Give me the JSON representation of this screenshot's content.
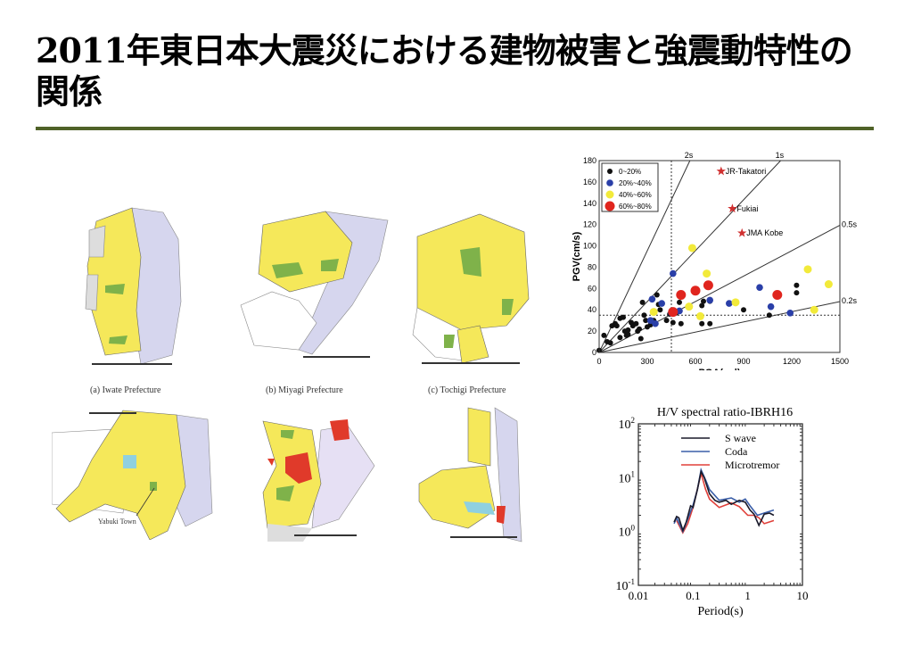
{
  "slide": {
    "title": "2011年東日本大震災における建物被害と強震動特性の関係"
  },
  "maps": {
    "captions": [
      "(a) Iwate Prefecture",
      "(b) Miyagi Prefecture",
      "(c) Tochigi Prefecture"
    ],
    "annotation": "Yabuki Town"
  },
  "colors": {
    "rule": "#4f6228",
    "yellow": "#f5e85a",
    "lavender": "#d6d6ee",
    "green": "#7fb24a",
    "red": "#e03a2a",
    "cyan": "#8fd0e0"
  },
  "chart_data": [
    {
      "type": "scatter",
      "xlabel": "PGA(gal)",
      "ylabel": "PGV(cm/s)",
      "xlim": [
        0,
        1500
      ],
      "ylim": [
        0,
        180
      ],
      "xticks": [
        0,
        300,
        600,
        900,
        1200,
        1500
      ],
      "yticks": [
        0,
        20,
        40,
        60,
        80,
        100,
        120,
        140,
        160,
        180
      ],
      "legend_position": "top-left",
      "period_lines": [
        {
          "label": "2s",
          "T": 2
        },
        {
          "label": "1s",
          "T": 1
        },
        {
          "label": "0.5s",
          "T": 0.5
        },
        {
          "label": "0.2s",
          "T": 0.2
        }
      ],
      "threshold_lines": {
        "pga": 450,
        "pgv": 35
      },
      "series": [
        {
          "name": "0~20%",
          "color": "#111111",
          "points": [
            [
              0,
              2
            ],
            [
              30,
              16
            ],
            [
              50,
              10
            ],
            [
              70,
              9
            ],
            [
              80,
              25
            ],
            [
              100,
              27
            ],
            [
              110,
              25
            ],
            [
              130,
              32
            ],
            [
              130,
              14
            ],
            [
              150,
              33
            ],
            [
              160,
              20
            ],
            [
              170,
              16
            ],
            [
              180,
              17
            ],
            [
              180,
              21
            ],
            [
              200,
              28
            ],
            [
              210,
              25
            ],
            [
              230,
              27
            ],
            [
              240,
              20
            ],
            [
              250,
              22
            ],
            [
              260,
              13
            ],
            [
              270,
              47
            ],
            [
              280,
              35
            ],
            [
              290,
              30
            ],
            [
              300,
              24
            ],
            [
              320,
              26
            ],
            [
              340,
              30
            ],
            [
              360,
              54
            ],
            [
              370,
              45
            ],
            [
              380,
              40
            ],
            [
              420,
              30
            ],
            [
              440,
              36
            ],
            [
              460,
              28
            ],
            [
              480,
              37
            ],
            [
              500,
              47
            ],
            [
              510,
              27
            ],
            [
              560,
              44
            ],
            [
              640,
              44
            ],
            [
              650,
              48
            ],
            [
              640,
              27
            ],
            [
              690,
              27
            ],
            [
              690,
              48
            ],
            [
              900,
              40
            ],
            [
              1060,
              35
            ],
            [
              1230,
              63
            ],
            [
              1230,
              56
            ]
          ]
        },
        {
          "name": "20%~40%",
          "color": "#2a3fa8",
          "points": [
            [
              320,
              30
            ],
            [
              330,
              50
            ],
            [
              350,
              27
            ],
            [
              390,
              46
            ],
            [
              450,
              37
            ],
            [
              460,
              74
            ],
            [
              470,
              38
            ],
            [
              500,
              39
            ],
            [
              690,
              49
            ],
            [
              810,
              46
            ],
            [
              1000,
              61
            ],
            [
              1070,
              43
            ],
            [
              1190,
              37
            ]
          ]
        },
        {
          "name": "40%~60%",
          "color": "#f2ea3a",
          "points": [
            [
              340,
              38
            ],
            [
              560,
              43
            ],
            [
              580,
              98
            ],
            [
              630,
              34
            ],
            [
              670,
              74
            ],
            [
              850,
              47
            ],
            [
              1300,
              78
            ],
            [
              1340,
              40
            ],
            [
              1430,
              64
            ]
          ]
        },
        {
          "name": "60%~80%",
          "color": "#e0251e",
          "points": [
            [
              460,
              38
            ],
            [
              510,
              54
            ],
            [
              600,
              58
            ],
            [
              680,
              63
            ],
            [
              1110,
              54
            ]
          ]
        }
      ],
      "annotations": [
        {
          "label": "JR-Takatori",
          "x": 760,
          "y": 170
        },
        {
          "label": "Fukiai",
          "x": 830,
          "y": 135
        },
        {
          "label": "JMA Kobe",
          "x": 890,
          "y": 112
        }
      ]
    },
    {
      "type": "line",
      "title": "H/V spectral ratio-IBRH16",
      "xlabel": "Period(s)",
      "xscale": "log",
      "yscale": "log",
      "xlim": [
        0.01,
        10
      ],
      "ylim": [
        0.1,
        100
      ],
      "xticks": [
        "0.01",
        "0.1",
        "1",
        "10"
      ],
      "yticks": [
        {
          "base": "10",
          "exp": "-1"
        },
        {
          "base": "10",
          "exp": "0"
        },
        {
          "base": "10",
          "exp": "1"
        },
        {
          "base": "10",
          "exp": "2"
        }
      ],
      "legend_position": "top-right",
      "series": [
        {
          "name": "S wave",
          "color": "#1a1a2a",
          "points": [
            [
              0.045,
              1.5
            ],
            [
              0.05,
              1.9
            ],
            [
              0.055,
              1.8
            ],
            [
              0.065,
              1.05
            ],
            [
              0.075,
              1.5
            ],
            [
              0.09,
              3.0
            ],
            [
              0.1,
              2.8
            ],
            [
              0.12,
              6
            ],
            [
              0.14,
              13
            ],
            [
              0.16,
              10
            ],
            [
              0.2,
              5
            ],
            [
              0.25,
              3.8
            ],
            [
              0.3,
              3.5
            ],
            [
              0.4,
              3.8
            ],
            [
              0.5,
              3.2
            ],
            [
              0.7,
              3.8
            ],
            [
              0.9,
              3.5
            ],
            [
              1.1,
              2.5
            ],
            [
              1.3,
              2.1
            ],
            [
              1.6,
              1.3
            ],
            [
              2,
              2.1
            ],
            [
              2.5,
              2.2
            ],
            [
              3,
              2.0
            ]
          ]
        },
        {
          "name": "Coda",
          "color": "#3a5ea8",
          "points": [
            [
              0.045,
              1.4
            ],
            [
              0.05,
              1.8
            ],
            [
              0.065,
              1.0
            ],
            [
              0.08,
              1.7
            ],
            [
              0.1,
              3.1
            ],
            [
              0.12,
              6
            ],
            [
              0.14,
              14
            ],
            [
              0.17,
              9
            ],
            [
              0.2,
              6
            ],
            [
              0.3,
              3.8
            ],
            [
              0.5,
              4.2
            ],
            [
              0.7,
              3.5
            ],
            [
              0.9,
              4.0
            ],
            [
              1.1,
              3.0
            ],
            [
              1.5,
              2.0
            ],
            [
              2,
              2.2
            ],
            [
              3,
              2.5
            ]
          ]
        },
        {
          "name": "Microtremor",
          "color": "#e0403a",
          "points": [
            [
              0.05,
              1.6
            ],
            [
              0.065,
              0.95
            ],
            [
              0.08,
              1.4
            ],
            [
              0.1,
              2.8
            ],
            [
              0.14,
              12
            ],
            [
              0.17,
              6
            ],
            [
              0.2,
              4
            ],
            [
              0.3,
              2.8
            ],
            [
              0.5,
              3.4
            ],
            [
              0.7,
              2.9
            ],
            [
              1,
              2.0
            ],
            [
              1.3,
              2.0
            ],
            [
              1.6,
              1.8
            ],
            [
              2,
              1.4
            ],
            [
              3,
              1.6
            ]
          ]
        }
      ]
    }
  ]
}
